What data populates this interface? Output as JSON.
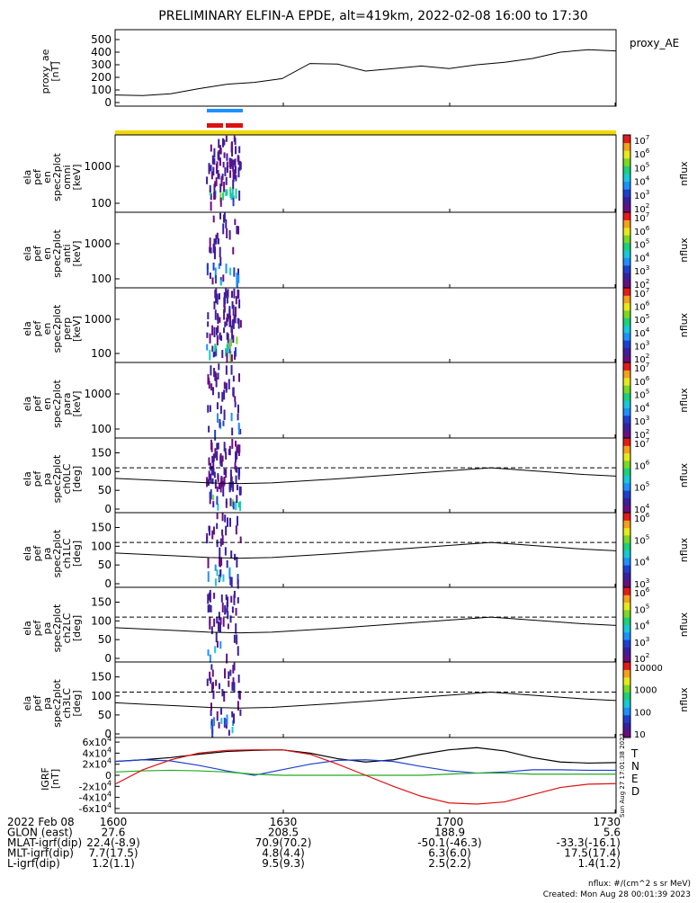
{
  "title": "PRELIMINARY ELFIN-A EPDE, alt=419km, 2022-02-08 16:00 to 17:30",
  "chart_data": [
    {
      "type": "line",
      "panel": "proxy_ae",
      "ylabel_lines": [
        "proxy_ae",
        "[nT]"
      ],
      "legend": "proxy_AE",
      "yticks": [
        "500",
        "400",
        "300",
        "200",
        "100",
        "0"
      ],
      "ylim": [
        0,
        550
      ],
      "x": [
        "16:00",
        "16:05",
        "16:10",
        "16:15",
        "16:20",
        "16:25",
        "16:30",
        "16:35",
        "16:40",
        "16:45",
        "16:50",
        "16:55",
        "17:00",
        "17:05",
        "17:10",
        "17:15",
        "17:20",
        "17:25",
        "17:30"
      ],
      "values": [
        60,
        55,
        70,
        110,
        145,
        160,
        190,
        310,
        305,
        250,
        270,
        290,
        270,
        300,
        320,
        350,
        400,
        420,
        410
      ]
    },
    {
      "type": "heatmap",
      "panel": "omni",
      "ylabel_lines": [
        "ela",
        "pef",
        "en",
        "spec2plot",
        "omni",
        "[keV]"
      ],
      "yticks": [
        "1000",
        "100"
      ],
      "colorbar_ticks": [
        "10^7",
        "10^6",
        "10^5",
        "10^4",
        "10^3",
        "10^2"
      ],
      "colorbar_label": "nflux"
    },
    {
      "type": "heatmap",
      "panel": "anti",
      "ylabel_lines": [
        "ela",
        "pef",
        "en",
        "spec2plot",
        "anti",
        "[keV]"
      ],
      "yticks": [
        "1000",
        "100"
      ],
      "colorbar_ticks": [
        "10^7",
        "10^6",
        "10^5",
        "10^4",
        "10^3",
        "10^2"
      ],
      "colorbar_label": "nflux"
    },
    {
      "type": "heatmap",
      "panel": "perp",
      "ylabel_lines": [
        "ela",
        "pef",
        "en",
        "spec2plot",
        "perp",
        "[keV]"
      ],
      "yticks": [
        "1000",
        "100"
      ],
      "colorbar_ticks": [
        "10^7",
        "10^6",
        "10^5",
        "10^4",
        "10^3",
        "10^2"
      ],
      "colorbar_label": "nflux"
    },
    {
      "type": "heatmap",
      "panel": "para",
      "ylabel_lines": [
        "ela",
        "pef",
        "en",
        "spec2plot",
        "para",
        "[keV]"
      ],
      "yticks": [
        "1000",
        "100"
      ],
      "colorbar_ticks": [
        "10^7",
        "10^6",
        "10^5",
        "10^4",
        "10^3",
        "10^2"
      ],
      "colorbar_label": "nflux"
    },
    {
      "type": "heatmap",
      "panel": "ch0LC",
      "ylabel_lines": [
        "ela",
        "pef",
        "pa",
        "spec2plot",
        "ch0LC",
        "[deg]"
      ],
      "yticks": [
        "150",
        "100",
        "50",
        "0"
      ],
      "ylim": [
        0,
        180
      ],
      "colorbar_ticks": [
        "10^7",
        "10^6",
        "10^5",
        "10^4"
      ],
      "colorbar_label": "nflux"
    },
    {
      "type": "heatmap",
      "panel": "ch1LC",
      "ylabel_lines": [
        "ela",
        "pef",
        "pa",
        "spec2plot",
        "ch1LC",
        "[deg]"
      ],
      "yticks": [
        "150",
        "100",
        "50",
        "0"
      ],
      "ylim": [
        0,
        180
      ],
      "colorbar_ticks": [
        "10^6",
        "10^5",
        "10^4",
        "10^3"
      ],
      "colorbar_label": "nflux"
    },
    {
      "type": "heatmap",
      "panel": "ch2LC",
      "ylabel_lines": [
        "ela",
        "pef",
        "pa",
        "spec2plot",
        "ch2LC",
        "[deg]"
      ],
      "yticks": [
        "150",
        "100",
        "50",
        "0"
      ],
      "ylim": [
        0,
        180
      ],
      "colorbar_ticks": [
        "10^6",
        "10^5",
        "10^4",
        "10^3",
        "10^2"
      ],
      "colorbar_label": "nflux"
    },
    {
      "type": "heatmap",
      "panel": "ch3LC",
      "ylabel_lines": [
        "ela",
        "pef",
        "pa",
        "spec2plot",
        "ch3LC",
        "[deg]"
      ],
      "yticks": [
        "150",
        "100",
        "50",
        "0"
      ],
      "ylim": [
        0,
        180
      ],
      "colorbar_ticks": [
        "10000",
        "1000",
        "100",
        "10"
      ],
      "colorbar_label": "nflux"
    },
    {
      "type": "line",
      "panel": "IGRF",
      "ylabel_lines": [
        "IGRF",
        "[nT]"
      ],
      "yticks": [
        "6x10^4",
        "4x10^4",
        "2x10^4",
        "0",
        "-2x10^4",
        "-4x10^4",
        "-6x10^4"
      ],
      "ylim": [
        -65000,
        65000
      ],
      "legend": [
        "T",
        "N",
        "E",
        "D"
      ],
      "legend_colors": [
        "#000000",
        "#1f3fd0",
        "#22aa22",
        "#dd1111"
      ],
      "x": [
        "16:00",
        "16:05",
        "16:10",
        "16:15",
        "16:20",
        "16:25",
        "16:30",
        "16:35",
        "16:40",
        "16:45",
        "16:50",
        "16:55",
        "17:00",
        "17:05",
        "17:10",
        "17:15",
        "17:20",
        "17:25",
        "17:30"
      ],
      "series": [
        {
          "name": "T",
          "values": [
            25000,
            28000,
            32000,
            38000,
            43000,
            45000,
            46000,
            40000,
            30000,
            24000,
            28000,
            38000,
            46000,
            50000,
            44000,
            32000,
            24000,
            22000,
            23000
          ]
        },
        {
          "name": "N",
          "values": [
            25000,
            28000,
            26000,
            18000,
            8000,
            0,
            10000,
            20000,
            27000,
            28000,
            25000,
            16000,
            8000,
            4000,
            6000,
            10000,
            10000,
            9000,
            9000
          ]
        },
        {
          "name": "E",
          "values": [
            6000,
            8000,
            9000,
            8000,
            6000,
            2000,
            0,
            0,
            0,
            0,
            0,
            0,
            2000,
            4000,
            4000,
            2000,
            2000,
            2000,
            2000
          ]
        },
        {
          "name": "D",
          "values": [
            -16000,
            10000,
            28000,
            40000,
            45000,
            46000,
            46000,
            38000,
            20000,
            0,
            -20000,
            -38000,
            -50000,
            -52000,
            -48000,
            -35000,
            -22000,
            -16000,
            -15000
          ]
        }
      ],
      "side_note": "Sun Aug 27 17:01:38 2023"
    }
  ],
  "footer": {
    "rows": [
      [
        "2022 Feb 08",
        "1600",
        "1630",
        "1700",
        "1730"
      ],
      [
        "GLON (east)",
        "27.6",
        "208.5",
        "188.9",
        "5.6"
      ],
      [
        "MLAT-igrf(dip)",
        "22.4(-8.9)",
        "70.9(70.2)",
        "-50.1(-46.3)",
        "-33.3(-16.1)"
      ],
      [
        "MLT-igrf(dip)",
        "7.7(17.5)",
        "4.8(4.4)",
        "6.3(6.0)",
        "17.5(17.4)"
      ],
      [
        "L-igrf(dip)",
        "1.2(1.1)",
        "9.5(9.3)",
        "2.5(2.2)",
        "1.4(1.2)"
      ]
    ],
    "units_note": "nflux: #/(cm^2 s sr MeV)",
    "created": "Created: Mon Aug 28 00:01:39 2023"
  },
  "colors": {
    "bar_blue": "#1e90ff",
    "bar_red": "#dd1111",
    "bar_yellow": "#f0d800"
  }
}
